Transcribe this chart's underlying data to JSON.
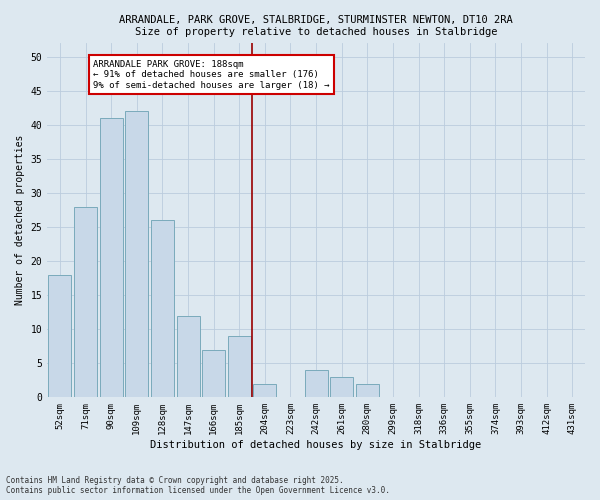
{
  "title_line1": "ARRANDALE, PARK GROVE, STALBRIDGE, STURMINSTER NEWTON, DT10 2RA",
  "title_line2": "Size of property relative to detached houses in Stalbridge",
  "xlabel": "Distribution of detached houses by size in Stalbridge",
  "ylabel": "Number of detached properties",
  "categories": [
    "52sqm",
    "71sqm",
    "90sqm",
    "109sqm",
    "128sqm",
    "147sqm",
    "166sqm",
    "185sqm",
    "204sqm",
    "223sqm",
    "242sqm",
    "261sqm",
    "280sqm",
    "299sqm",
    "318sqm",
    "336sqm",
    "355sqm",
    "374sqm",
    "393sqm",
    "412sqm",
    "431sqm"
  ],
  "values": [
    18,
    28,
    41,
    42,
    26,
    12,
    7,
    9,
    2,
    0,
    4,
    3,
    2,
    0,
    0,
    0,
    0,
    0,
    0,
    0,
    0
  ],
  "bar_color": "#c8d8e8",
  "bar_edge_color": "#7aaabb",
  "grid_color": "#bbccdd",
  "vline_color": "#990000",
  "annotation_text": "ARRANDALE PARK GROVE: 188sqm\n← 91% of detached houses are smaller (176)\n9% of semi-detached houses are larger (18) →",
  "annotation_box_facecolor": "#ffffff",
  "annotation_box_edgecolor": "#cc0000",
  "ylim": [
    0,
    52
  ],
  "yticks": [
    0,
    5,
    10,
    15,
    20,
    25,
    30,
    35,
    40,
    45,
    50
  ],
  "footer_line1": "Contains HM Land Registry data © Crown copyright and database right 2025.",
  "footer_line2": "Contains public sector information licensed under the Open Government Licence v3.0.",
  "background_color": "#dde8f0"
}
